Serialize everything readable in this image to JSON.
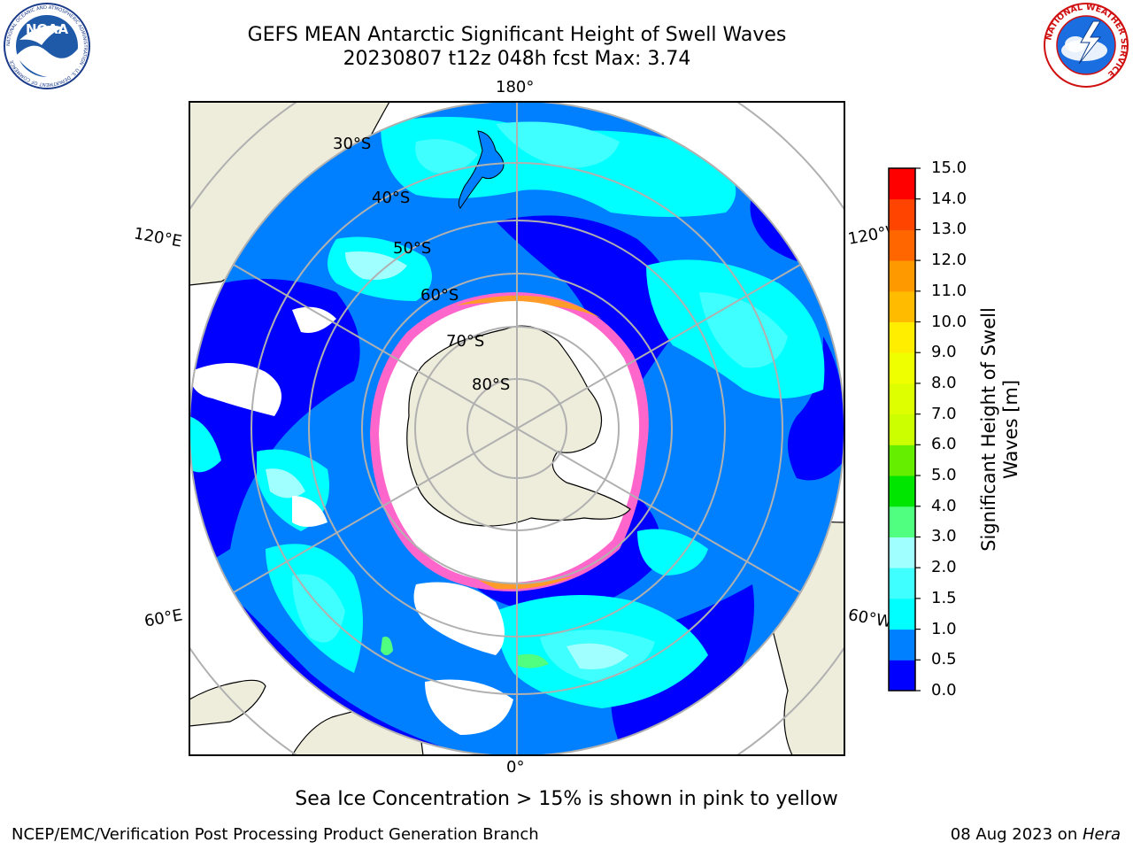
{
  "title": {
    "line1": "GEFS MEAN Antarctic Significant Height of Swell Waves",
    "line2": "20230807 t12z 048h fcst   Max: 3.74"
  },
  "logos": {
    "left": {
      "name": "noaa-logo",
      "text": "NOAA",
      "ring_text": "NATIONAL OCEANIC AND ATMOSPHERIC ADMINISTRATION · U.S. DEPARTMENT OF COMMERCE"
    },
    "right": {
      "name": "national-weather-service-logo",
      "ring_text": "NATIONAL WEATHER SERVICE"
    }
  },
  "map": {
    "projection": "south-polar-stereographic",
    "longitude_labels": {
      "top": "180°",
      "bottom": "0°",
      "left_upper": "120°E",
      "left_lower": "60°E",
      "right_upper": "120°W",
      "right_lower": "60°W"
    },
    "latitude_labels": [
      "30°S",
      "40°S",
      "50°S",
      "60°S",
      "70°S",
      "80°S"
    ],
    "colors": {
      "land": "#eeecdb",
      "ice_fringe": "#ff66cc",
      "ocean_background": "#ffffff",
      "graticule": "#b0b0b0"
    }
  },
  "colorbar": {
    "label": "Significant Height of Swell Waves [m]",
    "ticks": [
      "15.0",
      "14.0",
      "13.0",
      "12.0",
      "11.0",
      "10.0",
      "9.0",
      "8.0",
      "7.0",
      "6.0",
      "5.0",
      "4.0",
      "3.0",
      "2.0",
      "1.5",
      "1.0",
      "0.5",
      "0.0"
    ],
    "bins": [
      {
        "from": 0.0,
        "to": 0.5,
        "color": "#0000ff"
      },
      {
        "from": 0.5,
        "to": 1.0,
        "color": "#0080ff"
      },
      {
        "from": 1.0,
        "to": 1.5,
        "color": "#00ffff"
      },
      {
        "from": 1.5,
        "to": 2.0,
        "color": "#40ffff"
      },
      {
        "from": 2.0,
        "to": 3.0,
        "color": "#a0ffff"
      },
      {
        "from": 3.0,
        "to": 4.0,
        "color": "#50ff80"
      },
      {
        "from": 4.0,
        "to": 5.0,
        "color": "#00e600"
      },
      {
        "from": 5.0,
        "to": 6.0,
        "color": "#66ee00"
      },
      {
        "from": 6.0,
        "to": 7.0,
        "color": "#ccff00"
      },
      {
        "from": 7.0,
        "to": 8.0,
        "color": "#ddff00"
      },
      {
        "from": 8.0,
        "to": 9.0,
        "color": "#f0ff00"
      },
      {
        "from": 9.0,
        "to": 10.0,
        "color": "#ffee00"
      },
      {
        "from": 10.0,
        "to": 11.0,
        "color": "#ffbb00"
      },
      {
        "from": 11.0,
        "to": 12.0,
        "color": "#ff9900"
      },
      {
        "from": 12.0,
        "to": 13.0,
        "color": "#ff6600"
      },
      {
        "from": 13.0,
        "to": 14.0,
        "color": "#ff4400"
      },
      {
        "from": 14.0,
        "to": 15.0,
        "color": "#ff0000"
      }
    ]
  },
  "note": "Sea Ice Concentration > 15% is shown in pink to yellow",
  "footer": {
    "left": "NCEP/EMC/Verification Post Processing Product Generation Branch",
    "right_prefix": "08 Aug 2023 on ",
    "right_host": "Hera"
  }
}
